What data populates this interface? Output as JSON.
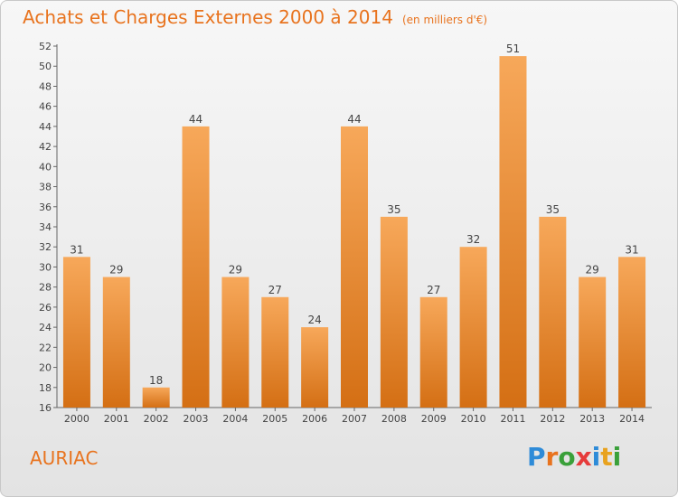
{
  "header": {
    "title": "Achats et Charges Externes 2000 à 2014",
    "subtitle": "(en milliers d'€)"
  },
  "footer": {
    "place": "AURIAC",
    "logo_text": "Proxiti",
    "logo_colors": [
      "#2e8bd8",
      "#e8731e",
      "#3aa03a",
      "#e63b3b",
      "#2e8bd8",
      "#e8a21e",
      "#3aa03a"
    ]
  },
  "colors": {
    "bar_light": "#f7a85a",
    "bar_dark": "#d46f14",
    "title": "#e8731e"
  },
  "chart_data": {
    "type": "bar",
    "title": "Achats et Charges Externes 2000 à 2014",
    "categories": [
      "2000",
      "2001",
      "2002",
      "2003",
      "2004",
      "2005",
      "2006",
      "2007",
      "2008",
      "2009",
      "2010",
      "2011",
      "2012",
      "2013",
      "2014"
    ],
    "values": [
      31,
      29,
      18,
      44,
      29,
      27,
      24,
      44,
      35,
      27,
      32,
      51,
      35,
      29,
      31
    ],
    "ylim": [
      16,
      52
    ],
    "yticks": [
      16,
      18,
      20,
      22,
      24,
      26,
      28,
      30,
      32,
      34,
      36,
      38,
      40,
      42,
      44,
      46,
      48,
      50,
      52
    ],
    "grid": false,
    "legend": "none"
  }
}
